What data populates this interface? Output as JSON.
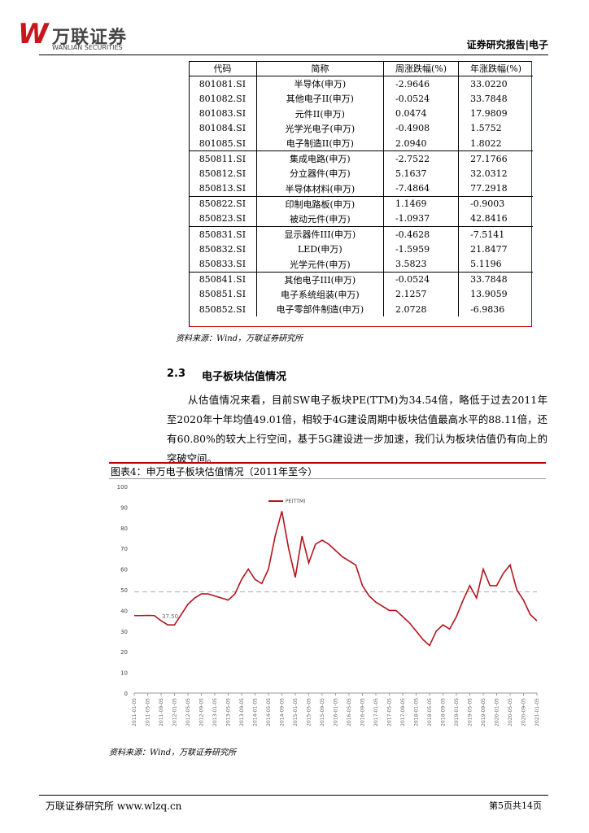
{
  "header": {
    "logo_mark": "W",
    "logo_cn": "万联证券",
    "logo_en": "WANLIAN SECURITIES",
    "report_tag": "证券研究报告|电子"
  },
  "table": {
    "columns": [
      "代码",
      "简称",
      "周涨跌幅(%)",
      "年涨跌幅(%)"
    ],
    "rows": [
      [
        "801081.SI",
        "半导体(申万)",
        "-2.9646",
        "33.0220"
      ],
      [
        "801082.SI",
        "其他电子II(申万)",
        "-0.0524",
        "33.7848"
      ],
      [
        "801083.SI",
        "元件II(申万)",
        "0.0474",
        "17.9809"
      ],
      [
        "801084.SI",
        "光学光电子(申万)",
        "-0.4908",
        "1.5752"
      ],
      [
        "801085.SI",
        "电子制造II(申万)",
        "2.0940",
        "1.8022"
      ],
      [
        "850811.SI",
        "集成电路(申万)",
        "-2.7522",
        "27.1766"
      ],
      [
        "850812.SI",
        "分立器件(申万)",
        "5.1637",
        "32.0312"
      ],
      [
        "850813.SI",
        "半导体材料(申万)",
        "-7.4864",
        "77.2918"
      ],
      [
        "850822.SI",
        "印制电路板(申万)",
        "1.1469",
        "-0.9003"
      ],
      [
        "850823.SI",
        "被动元件(申万)",
        "-1.0937",
        "42.8416"
      ],
      [
        "850831.SI",
        "显示器件III(申万)",
        "-0.4628",
        "-7.5141"
      ],
      [
        "850832.SI",
        "LED(申万)",
        "-1.5959",
        "21.8477"
      ],
      [
        "850833.SI",
        "光学元件(申万)",
        "3.5823",
        "5.1196"
      ],
      [
        "850841.SI",
        "其他电子III(申万)",
        "-0.0524",
        "33.7848"
      ],
      [
        "850851.SI",
        "电子系统组装(申万)",
        "2.1257",
        "13.9059"
      ],
      [
        "850852.SI",
        "电子零部件制造(申万)",
        "2.0728",
        "-6.9836"
      ]
    ],
    "source": "资料来源：Wind，万联证券研究所"
  },
  "section": {
    "number": "2.3",
    "title": "电子板块估值情况",
    "paragraph": "从估值情况来看，目前SW电子板块PE(TTM)为34.54倍，略低于过去2011年至2020年十年均值49.01倍，相较于4G建设周期中板块估值最高水平的88.11倍，还有60.80%的较大上行空间，基于5G建设进一步加速，我们认为板块估值仍有向上的突破空间。"
  },
  "figure": {
    "title": "图表4：申万电子板块估值情况（2011年至今）",
    "source": "资料来源：Wind，万联证券研究所"
  },
  "chart_data": {
    "type": "line",
    "ylim": [
      0,
      100
    ],
    "yticks": [
      0,
      10,
      20,
      30,
      40,
      50,
      60,
      70,
      80,
      90,
      100
    ],
    "grid": false,
    "mean_line": 49.01,
    "annotation": "37.50",
    "categories": [
      "2011-01-05",
      null,
      "2011-05-05",
      null,
      "2011-09-05",
      null,
      "2012-01-05",
      null,
      "2012-05-05",
      null,
      "2012-09-05",
      null,
      "2013-01-05",
      null,
      "2013-05-05",
      null,
      "2013-09-05",
      null,
      "2014-01-05",
      null,
      "2014-05-05",
      null,
      "2014-09-05",
      null,
      "2015-01-05",
      null,
      "2015-05-05",
      null,
      "2015-09-05",
      null,
      "2016-01-05",
      null,
      "2016-05-05",
      null,
      "2016-09-05",
      null,
      "2017-01-05",
      null,
      "2017-05-05",
      null,
      "2017-09-05",
      null,
      "2018-01-05",
      null,
      "2018-05-05",
      null,
      "2018-09-05",
      null,
      "2019-01-05",
      null,
      "2019-05-05",
      null,
      "2019-09-05",
      null,
      "2020-01-05",
      null,
      "2020-05-05",
      null,
      "2020-09-05",
      null,
      "2021-01-05"
    ],
    "series": [
      {
        "name": "PE(TTM)",
        "color": "#b4131b",
        "values": [
          37.5,
          37.5,
          37.6,
          37.5,
          35,
          33,
          33,
          38,
          43,
          46,
          48,
          48,
          47,
          46,
          45,
          48,
          55,
          60,
          55,
          53,
          60,
          76,
          88,
          70,
          56,
          76,
          63,
          72,
          74,
          72,
          69,
          66,
          64,
          62,
          52,
          47,
          44,
          42,
          40,
          40,
          37,
          34,
          30,
          26,
          23,
          30,
          33,
          31,
          37,
          45,
          52,
          46,
          60,
          52,
          52,
          58,
          62,
          50,
          45,
          38,
          35
        ]
      }
    ]
  },
  "footer": {
    "left": "万联证券研究所 www.wlzq.cn",
    "right": "第5页共14页"
  }
}
